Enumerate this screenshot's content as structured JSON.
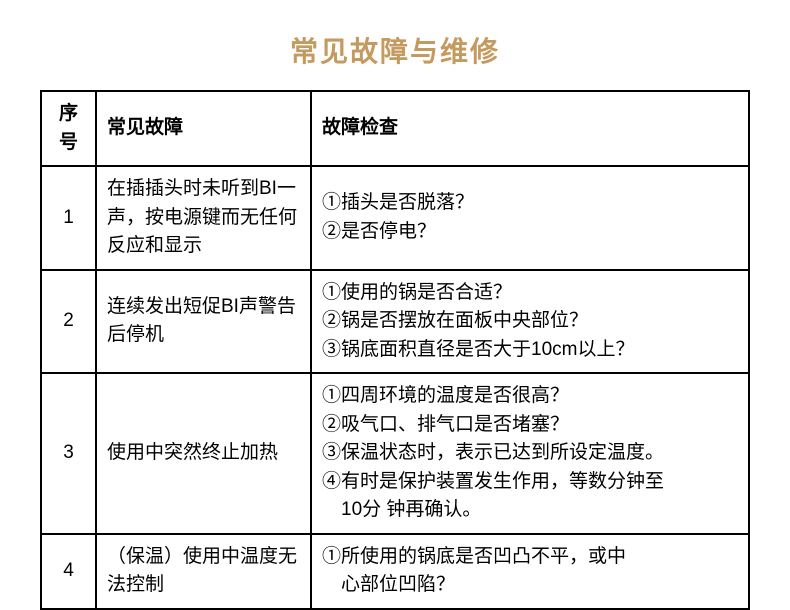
{
  "title": "常见故障与维修",
  "title_color": "#c59a5f",
  "text_color": "#000000",
  "border_color": "#000000",
  "background_color": "#ffffff",
  "font_size_title": 28,
  "font_size_cell": 19,
  "columns": [
    "序号",
    "常见故障",
    "故障检查"
  ],
  "rows": [
    {
      "num": "1",
      "fault": "在插插头时未听到BI一声，按电源键而无任何反应和显示",
      "check": "①插头是否脱落？\n②是否停电？"
    },
    {
      "num": "2",
      "fault": "连续发出短促BI声警告后停机",
      "check": "①使用的锅是否合适？\n②锅是否摆放在面板中央部位？\n③锅底面积直径是否大于10cm以上？"
    },
    {
      "num": "3",
      "fault": "使用中突然终止加热",
      "check": "①四周环境的温度是否很高？\n②吸气口、排气口是否堵塞？\n③保温状态时，表示已达到所设定温度。\n④有时是保护装置发生作用，等数分钟至\n　10分 钟再确认。"
    },
    {
      "num": "4",
      "fault": "（保温）使用中温度无法控制",
      "check": "①所使用的锅底是否凹凸不平，或中\n　心部位凹陷？"
    }
  ]
}
